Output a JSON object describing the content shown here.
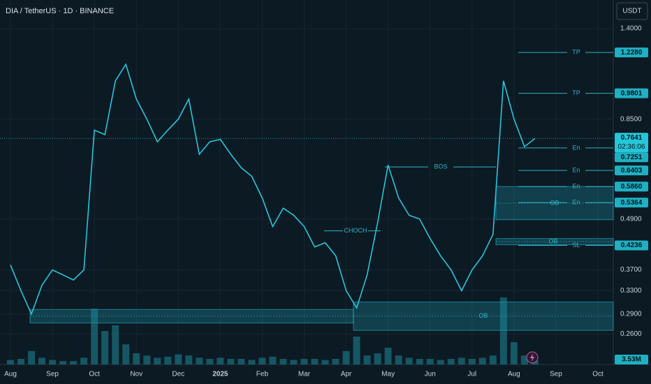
{
  "header": {
    "title": "DIA / TetherUS · 1D · BINANCE",
    "currency": "USDT"
  },
  "chart_data": {
    "type": "line",
    "log_scale": true,
    "grid": true,
    "color": "#26c6da",
    "categories": [
      "Aug",
      null,
      null,
      null,
      "Sep",
      null,
      null,
      null,
      "Oct",
      null,
      null,
      null,
      "Nov",
      null,
      null,
      null,
      "Dec",
      null,
      null,
      null,
      "2025",
      null,
      null,
      null,
      "Feb",
      null,
      null,
      null,
      "Mar",
      null,
      null,
      null,
      "Apr",
      null,
      null,
      null,
      "May",
      null,
      null,
      null,
      "Jun",
      null,
      null,
      null,
      "Jul",
      null,
      null,
      null,
      "Aug",
      null,
      null,
      null,
      "Sep",
      null,
      null,
      null,
      "Oct",
      null,
      null,
      null
    ],
    "values": [
      0.38,
      0.33,
      0.29,
      0.34,
      0.37,
      0.36,
      0.35,
      0.37,
      0.8,
      0.78,
      1.05,
      1.15,
      0.95,
      0.85,
      0.75,
      0.8,
      0.85,
      0.95,
      0.7,
      0.75,
      0.76,
      0.7,
      0.65,
      0.62,
      0.55,
      0.47,
      0.52,
      0.5,
      0.47,
      0.42,
      0.43,
      0.4,
      0.33,
      0.3,
      0.36,
      0.48,
      0.66,
      0.55,
      0.5,
      0.49,
      0.44,
      0.4,
      0.37,
      0.33,
      0.37,
      0.4,
      0.45,
      1.05,
      0.85,
      0.73,
      0.7641,
      null,
      null,
      null,
      null,
      null,
      null,
      null,
      null,
      null
    ],
    "ylim": [
      0.23,
      1.64
    ],
    "yticks": [
      {
        "value": 1.4,
        "label": "1.4000"
      },
      {
        "value": 0.85,
        "label": "0.8500"
      },
      {
        "value": 0.49,
        "label": "0.4900"
      },
      {
        "value": 0.37,
        "label": "0.3700"
      },
      {
        "value": 0.33,
        "label": "0.3300"
      },
      {
        "value": 0.29,
        "label": "0.2900"
      },
      {
        "value": 0.26,
        "label": "0.2600"
      }
    ],
    "price_tags": [
      {
        "value": 1.228,
        "label": "1.2280"
      },
      {
        "value": 0.9801,
        "label": "0.9801"
      },
      {
        "value": 0.7251,
        "label": "0.7251"
      },
      {
        "value": 0.6403,
        "label": "0.6403"
      },
      {
        "value": 0.586,
        "label": "0.5860"
      },
      {
        "value": 0.5364,
        "label": "0.5364"
      },
      {
        "value": 0.4236,
        "label": "0.4236"
      }
    ],
    "current_price": {
      "value": 0.7641,
      "label": "0.7641"
    },
    "countdown": "02:36:06",
    "levels": [
      {
        "label": "TP",
        "value": 1.228
      },
      {
        "label": "TP",
        "value": 0.9801
      },
      {
        "label": "En",
        "value": 0.7251
      },
      {
        "label": "En",
        "value": 0.6403
      },
      {
        "label": "En",
        "value": 0.586
      },
      {
        "label": "En",
        "value": 0.5364
      },
      {
        "label": "SL",
        "value": 0.4236
      }
    ],
    "zones": [
      {
        "low": 0.276,
        "high": 0.2975
      },
      {
        "label": "OB",
        "low": 0.265,
        "high": 0.31
      },
      {
        "label": "OB",
        "low": 0.488,
        "high": 0.586
      },
      {
        "label": "OB",
        "low": 0.425,
        "high": 0.44
      }
    ],
    "structure": [
      {
        "label": "BOS",
        "value": 0.653
      },
      {
        "label": "CHOCH",
        "value": 0.459
      }
    ],
    "volume": {
      "color": "#1d8a99",
      "last": {
        "value": 3.53,
        "label": "3.53M"
      },
      "values": [
        4,
        5,
        12,
        6,
        4,
        3,
        3,
        6,
        50,
        30,
        35,
        18,
        10,
        8,
        6,
        7,
        9,
        8,
        6,
        5,
        6,
        5,
        5,
        4,
        6,
        7,
        5,
        4,
        5,
        5,
        4,
        5,
        12,
        25,
        8,
        10,
        15,
        8,
        6,
        5,
        5,
        4,
        5,
        6,
        5,
        6,
        8,
        60,
        20,
        8,
        3.53,
        null,
        null,
        null,
        null,
        null,
        null,
        null,
        null,
        null
      ]
    }
  }
}
